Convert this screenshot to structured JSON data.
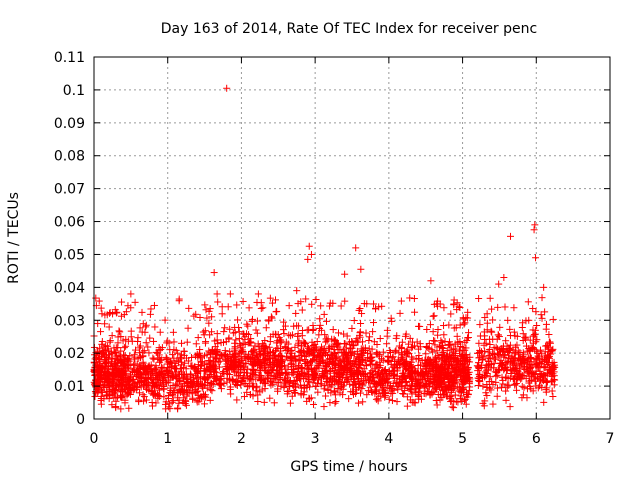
{
  "chart_data": {
    "type": "scatter",
    "title": "Day 163 of 2014, Rate Of TEC Index for receiver penc",
    "xlabel": "GPS time / hours",
    "ylabel": "ROTI / TECUs",
    "xlim": [
      0,
      7
    ],
    "ylim": [
      0,
      0.11
    ],
    "x_ticks": [
      "0",
      "1",
      "2",
      "3",
      "4",
      "5",
      "6",
      "7"
    ],
    "y_ticks": [
      "0",
      "0.01",
      "0.02",
      "0.03",
      "0.04",
      "0.05",
      "0.06",
      "0.07",
      "0.08",
      "0.09",
      "0.1",
      "0.11"
    ],
    "grid": true,
    "marker": "+",
    "marker_color": "#ff0000",
    "data_coverage": [
      [
        0.0,
        0.45
      ],
      [
        0.45,
        1.35
      ],
      [
        1.35,
        2.2
      ],
      [
        2.2,
        3.0
      ],
      [
        3.0,
        3.8
      ],
      [
        3.8,
        4.6
      ],
      [
        4.6,
        5.1
      ],
      [
        5.2,
        6.25
      ]
    ],
    "series": [
      {
        "name": "ROTI",
        "points": [
          [
            1.8,
            0.1005
          ],
          [
            1.63,
            0.0445
          ],
          [
            2.92,
            0.0525
          ],
          [
            2.95,
            0.05
          ],
          [
            2.9,
            0.0485
          ],
          [
            3.4,
            0.044
          ],
          [
            3.55,
            0.052
          ],
          [
            3.62,
            0.0455
          ],
          [
            5.65,
            0.0555
          ],
          [
            5.98,
            0.059
          ],
          [
            5.97,
            0.0575
          ],
          [
            5.99,
            0.049
          ],
          [
            4.57,
            0.042
          ],
          [
            1.67,
            0.038
          ],
          [
            1.85,
            0.038
          ],
          [
            2.23,
            0.038
          ],
          [
            2.75,
            0.039
          ],
          [
            0.5,
            0.038
          ],
          [
            0.82,
            0.0345
          ],
          [
            5.49,
            0.041
          ],
          [
            5.56,
            0.043
          ],
          [
            6.1,
            0.04
          ],
          [
            3.7,
            0.035
          ],
          [
            0.05,
            0.029
          ],
          [
            0.1,
            0.0045
          ],
          [
            4.1,
            0.0245
          ],
          [
            4.25,
            0.021
          ],
          [
            4.65,
            0.035
          ],
          [
            5.05,
            0.0045
          ],
          [
            5.3,
            0.0055
          ]
        ]
      }
    ]
  }
}
